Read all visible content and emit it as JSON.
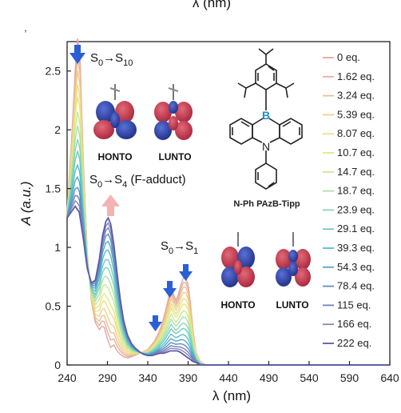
{
  "chart_data": {
    "type": "line",
    "title": "",
    "top_label": "λ (nm)",
    "xlabel": "λ (nm)",
    "ylabel": "A (a.u.)",
    "xlim": [
      240,
      640
    ],
    "ylim": [
      0,
      2.75
    ],
    "x_ticks": [
      240,
      290,
      340,
      390,
      440,
      490,
      540,
      590,
      640
    ],
    "y_ticks": [
      0,
      0.5,
      1,
      1.5,
      2,
      2.5
    ],
    "y_tick_labels": [
      "0",
      "0.5",
      "1",
      "1.5",
      "2",
      "2.5"
    ],
    "legend_position": "right",
    "series": [
      {
        "name": "0 eq.",
        "color": "#e2a7a0",
        "t": 0.0
      },
      {
        "name": "1.62 eq.",
        "color": "#e6b09c",
        "t": 0.06
      },
      {
        "name": "3.24 eq.",
        "color": "#eac195",
        "t": 0.12
      },
      {
        "name": "5.39 eq.",
        "color": "#eed08a",
        "t": 0.19
      },
      {
        "name": "8.07 eq.",
        "color": "#f0de84",
        "t": 0.27
      },
      {
        "name": "10.7 eq.",
        "color": "#e4e884",
        "t": 0.34
      },
      {
        "name": "14.7 eq.",
        "color": "#c9e894",
        "t": 0.43
      },
      {
        "name": "18.7 eq.",
        "color": "#a9e0a8",
        "t": 0.51
      },
      {
        "name": "23.9 eq.",
        "color": "#8ad6b8",
        "t": 0.59
      },
      {
        "name": "29.1 eq.",
        "color": "#6ecbc4",
        "t": 0.66
      },
      {
        "name": "39.3 eq.",
        "color": "#59bccb",
        "t": 0.74
      },
      {
        "name": "54.3 eq.",
        "color": "#52a8c8",
        "t": 0.81
      },
      {
        "name": "78.4 eq.",
        "color": "#5b8fc2",
        "t": 0.87
      },
      {
        "name": "115 eq.",
        "color": "#6f83b9",
        "t": 0.92
      },
      {
        "name": "166 eq.",
        "color": "#8b84b5",
        "t": 0.96
      },
      {
        "name": "222 eq.",
        "color": "#5c5aa8",
        "t": 1.0
      }
    ],
    "start_profile": {
      "x": [
        240,
        245,
        250,
        253,
        256,
        260,
        265,
        270,
        275,
        280,
        283,
        286,
        290,
        294,
        298,
        302,
        306,
        310,
        315,
        320,
        330,
        340,
        348,
        354,
        358,
        362,
        366,
        369,
        372,
        375,
        378,
        381,
        384,
        387,
        390,
        393,
        396,
        400,
        405,
        412,
        640
      ],
      "y": [
        1.3,
        1.85,
        2.5,
        2.78,
        2.62,
        1.75,
        0.95,
        0.55,
        0.36,
        0.3,
        0.33,
        0.32,
        0.22,
        0.15,
        0.17,
        0.12,
        0.09,
        0.07,
        0.06,
        0.07,
        0.1,
        0.13,
        0.2,
        0.28,
        0.36,
        0.46,
        0.58,
        0.67,
        0.6,
        0.55,
        0.6,
        0.68,
        0.74,
        0.74,
        0.68,
        0.52,
        0.3,
        0.1,
        0.03,
        0.0,
        0.0
      ]
    },
    "end_profile": {
      "x": [
        240,
        245,
        250,
        255,
        260,
        265,
        270,
        275,
        280,
        284,
        288,
        291,
        294,
        298,
        302,
        306,
        310,
        315,
        320,
        325,
        330,
        335,
        340,
        345,
        350,
        355,
        360,
        364,
        368,
        372,
        376,
        380,
        384,
        388,
        392,
        396,
        400,
        405,
        640
      ],
      "y": [
        1.25,
        1.3,
        1.35,
        1.3,
        1.08,
        0.82,
        0.7,
        0.72,
        0.9,
        1.1,
        1.22,
        1.25,
        1.2,
        1.02,
        0.78,
        0.55,
        0.38,
        0.25,
        0.18,
        0.14,
        0.11,
        0.09,
        0.08,
        0.08,
        0.09,
        0.1,
        0.1,
        0.11,
        0.12,
        0.12,
        0.12,
        0.11,
        0.09,
        0.07,
        0.05,
        0.03,
        0.02,
        0.0,
        0.0
      ]
    },
    "annotations": [
      {
        "id": "s10",
        "text_base": "S",
        "sub1": "0",
        "arrow": "→S",
        "sub2": "10",
        "suffix": ""
      },
      {
        "id": "s4",
        "text_base": "S",
        "sub1": "0",
        "arrow": "→S",
        "sub2": "4",
        "suffix": " (F-adduct)"
      },
      {
        "id": "s1",
        "text_base": "S",
        "sub1": "0",
        "arrow": "→S",
        "sub2": "1",
        "suffix": ""
      }
    ],
    "orbital_labels": [
      "HONTO",
      "LUNTO",
      "HONTO",
      "LUNTO"
    ],
    "molecule_label": "N-Ph PAzB-Tipp",
    "molecule_atoms": [
      "B",
      "N"
    ],
    "colors": {
      "arrow_down": "#2a5fd6",
      "arrow_up": "#f1a6a6",
      "orb_red": "#c7384a",
      "orb_blue": "#2b3f9e"
    }
  }
}
